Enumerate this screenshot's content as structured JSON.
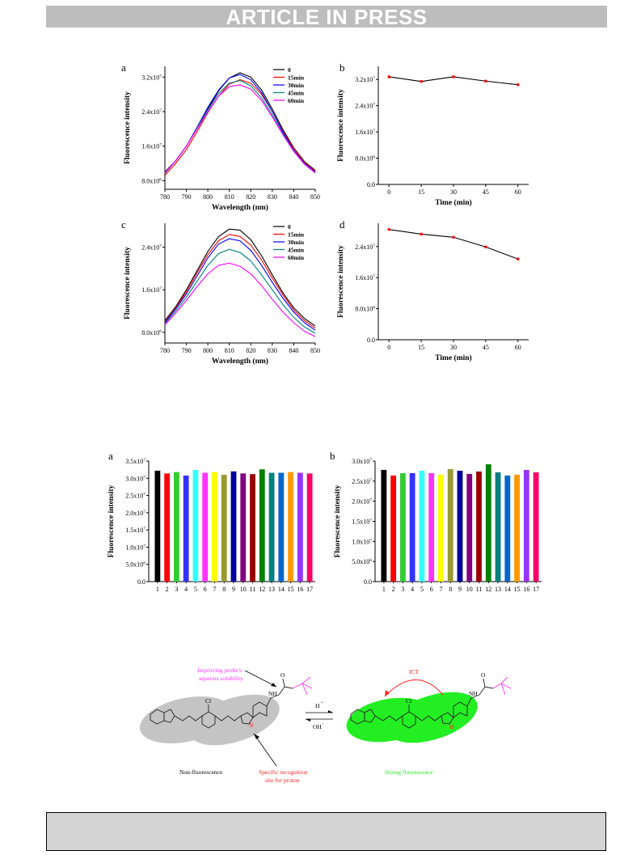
{
  "header": {
    "banner": "ARTICLE IN PRESS"
  },
  "chart_data": [
    {
      "id": "fig1a",
      "panel": "a",
      "type": "line",
      "xlabel": "Wavelength (nm)",
      "ylabel": "Fluorescence intensity",
      "xlim": [
        780,
        850
      ],
      "ylim": [
        6000000,
        34500000
      ],
      "xticks": [
        780,
        790,
        800,
        810,
        820,
        830,
        840,
        850
      ],
      "yticks": [
        8000000,
        16000000,
        24000000,
        32000000
      ],
      "ytick_labels": [
        "8.0x10^6",
        "1.6x10^7",
        "2.4x10^7",
        "3.2x10^7"
      ],
      "x": [
        780,
        785,
        790,
        795,
        800,
        805,
        810,
        815,
        820,
        825,
        830,
        835,
        840,
        845,
        850
      ],
      "series": [
        {
          "name": "0",
          "color": "#000000",
          "values": [
            10.0,
            12.6,
            16.0,
            20.2,
            24.6,
            28.8,
            31.8,
            33.0,
            32.0,
            29.0,
            24.6,
            19.8,
            15.6,
            12.4,
            10.4
          ]
        },
        {
          "name": "15min",
          "color": "#ff0000",
          "values": [
            9.2,
            12.0,
            15.2,
            19.4,
            23.8,
            27.6,
            30.4,
            31.4,
            30.6,
            28.0,
            24.0,
            19.4,
            15.4,
            12.2,
            10.2
          ]
        },
        {
          "name": "30min",
          "color": "#0000ff",
          "values": [
            9.8,
            12.6,
            16.0,
            20.4,
            25.0,
            29.0,
            31.8,
            32.6,
            31.4,
            28.4,
            24.0,
            19.2,
            15.0,
            12.0,
            10.0
          ]
        },
        {
          "name": "45min",
          "color": "#008080",
          "values": [
            9.6,
            12.6,
            16.0,
            20.2,
            24.4,
            28.2,
            30.6,
            31.2,
            30.0,
            27.2,
            23.2,
            18.8,
            14.8,
            11.8,
            9.8
          ]
        },
        {
          "name": "60min",
          "color": "#ff00ff",
          "values": [
            9.8,
            12.6,
            16.0,
            20.0,
            24.0,
            27.6,
            29.8,
            30.2,
            29.2,
            26.6,
            22.8,
            18.6,
            14.8,
            11.8,
            9.8
          ]
        }
      ]
    },
    {
      "id": "fig1b",
      "panel": "b",
      "type": "line",
      "xlabel": "Time (min)",
      "ylabel": "Fluorescence intensity",
      "xlim": [
        -5,
        65
      ],
      "ylim": [
        0,
        36000000
      ],
      "xticks": [
        0,
        15,
        30,
        45,
        60
      ],
      "yticks": [
        0,
        8000000,
        16000000,
        24000000,
        32000000
      ],
      "ytick_labels": [
        "0.0",
        "8.0x10^6",
        "1.6x10^7",
        "2.4x10^7",
        "3.2x10^7"
      ],
      "x": [
        0,
        15,
        30,
        45,
        60
      ],
      "series": [
        {
          "name": "",
          "color": "#000000",
          "marker_color": "#ff0000",
          "values": [
            32.8,
            31.4,
            32.8,
            31.5,
            30.4
          ]
        }
      ]
    },
    {
      "id": "fig1c",
      "panel": "c",
      "type": "line",
      "xlabel": "Wavelength (nm)",
      "ylabel": "Fluorescence intensity",
      "xlim": [
        780,
        850
      ],
      "ylim": [
        6000000,
        28500000
      ],
      "xticks": [
        780,
        790,
        800,
        810,
        820,
        830,
        840,
        850
      ],
      "yticks": [
        8000000,
        16000000,
        24000000
      ],
      "ytick_labels": [
        "8.0x10^6",
        "1.6x10^7",
        "2.4x10^7"
      ],
      "x": [
        780,
        785,
        790,
        795,
        800,
        805,
        810,
        815,
        820,
        825,
        830,
        835,
        840,
        845,
        850
      ],
      "series": [
        {
          "name": "0",
          "color": "#000000",
          "values": [
            10.2,
            12.8,
            16.0,
            19.6,
            23.2,
            26.0,
            27.4,
            27.2,
            25.4,
            22.4,
            18.8,
            15.4,
            12.6,
            10.6,
            9.2
          ]
        },
        {
          "name": "15min",
          "color": "#ff0000",
          "values": [
            10.0,
            12.6,
            15.6,
            19.2,
            22.6,
            25.2,
            26.4,
            26.0,
            24.4,
            21.6,
            18.2,
            15.0,
            12.2,
            10.2,
            8.8
          ]
        },
        {
          "name": "30min",
          "color": "#0000ff",
          "values": [
            9.8,
            12.4,
            15.2,
            18.6,
            22.0,
            24.6,
            25.6,
            25.2,
            23.4,
            20.6,
            17.4,
            14.4,
            11.8,
            9.8,
            8.4
          ]
        },
        {
          "name": "45min",
          "color": "#008080",
          "values": [
            9.6,
            12.0,
            14.6,
            17.6,
            20.6,
            22.8,
            23.6,
            23.0,
            21.4,
            18.8,
            16.0,
            13.2,
            10.8,
            9.0,
            7.8
          ]
        },
        {
          "name": "60min",
          "color": "#ff00ff",
          "values": [
            9.4,
            11.6,
            14.0,
            16.6,
            19.0,
            20.6,
            21.0,
            20.4,
            19.0,
            16.8,
            14.2,
            11.8,
            9.8,
            8.2,
            7.2
          ]
        }
      ]
    },
    {
      "id": "fig1d",
      "panel": "d",
      "type": "line",
      "xlabel": "Time (min)",
      "ylabel": "Fluorescence intensity",
      "xlim": [
        -5,
        65
      ],
      "ylim": [
        0,
        30000000
      ],
      "xticks": [
        0,
        15,
        30,
        45,
        60
      ],
      "yticks": [
        0,
        8000000,
        16000000,
        24000000
      ],
      "ytick_labels": [
        "0.0",
        "8.0x10^6",
        "1.6x10^7",
        "2.4x10^7"
      ],
      "x": [
        0,
        15,
        30,
        45,
        60
      ],
      "series": [
        {
          "name": "",
          "color": "#000000",
          "marker_color": "#ff0000",
          "values": [
            28.4,
            27.2,
            26.4,
            23.9,
            20.8
          ]
        }
      ]
    },
    {
      "id": "fig2a",
      "panel": "a",
      "type": "bar",
      "xlabel": "",
      "ylabel": "Fluorescence intensity",
      "ylim": [
        0,
        35000000
      ],
      "yticks": [
        0,
        5000000,
        10000000,
        15000000,
        20000000,
        25000000,
        30000000,
        35000000
      ],
      "ytick_labels": [
        "0.0",
        "5.0x10^6",
        "1.0x10^7",
        "1.5x10^7",
        "2.0x10^7",
        "2.5x10^7",
        "3.0x10^7",
        "3.5x10^7"
      ],
      "categories": [
        "1",
        "2",
        "3",
        "4",
        "5",
        "6",
        "7",
        "8",
        "9",
        "10",
        "11",
        "12",
        "13",
        "14",
        "15",
        "16",
        "17"
      ],
      "values": [
        32.2,
        31.4,
        31.8,
        30.8,
        32.4,
        31.6,
        31.8,
        31.0,
        32.0,
        31.4,
        31.2,
        32.6,
        31.6,
        31.6,
        31.8,
        31.6,
        31.4
      ],
      "colors": [
        "#000000",
        "#ff0000",
        "#33cc33",
        "#3333ff",
        "#33ffff",
        "#ff33ff",
        "#ffff00",
        "#999933",
        "#000099",
        "#800080",
        "#990000",
        "#008000",
        "#008080",
        "#0066cc",
        "#ff9900",
        "#9933ff",
        "#ff0066"
      ]
    },
    {
      "id": "fig2b",
      "panel": "b",
      "type": "bar",
      "xlabel": "",
      "ylabel": "Fluorescence intensity",
      "ylim": [
        0,
        30000000
      ],
      "yticks": [
        0,
        5000000,
        10000000,
        15000000,
        20000000,
        25000000,
        30000000
      ],
      "ytick_labels": [
        "0.0",
        "5.0x10^6",
        "1.0x10^7",
        "1.5x10^7",
        "2.0x10^7",
        "2.5x10^7",
        "3.0x10^7"
      ],
      "categories": [
        "1",
        "2",
        "3",
        "4",
        "5",
        "6",
        "7",
        "8",
        "9",
        "10",
        "11",
        "12",
        "13",
        "14",
        "15",
        "16",
        "17"
      ],
      "values": [
        27.8,
        26.4,
        27.0,
        27.0,
        27.6,
        27.0,
        26.6,
        28.0,
        27.6,
        26.8,
        27.4,
        29.2,
        27.2,
        26.4,
        26.6,
        27.8,
        27.2
      ],
      "colors": [
        "#000000",
        "#ff0000",
        "#33cc33",
        "#3333ff",
        "#33ffff",
        "#ff33ff",
        "#ffff00",
        "#999933",
        "#000099",
        "#800080",
        "#990000",
        "#008000",
        "#008080",
        "#0066cc",
        "#ff9900",
        "#9933ff",
        "#ff0066"
      ]
    }
  ],
  "scheme": {
    "solubility_label_1": "Improving probe's",
    "solubility_label_2": "aqueous solubility",
    "ict_label": "ICT",
    "acid_label": "H",
    "acid_sup": "+",
    "base_label": "OH",
    "base_sup": "-",
    "cl_left": "Cl",
    "cl_right": "Cl",
    "nh_left": "NH",
    "nh_right": "NH",
    "o_left": "O",
    "o_right": "O",
    "n_label": "N",
    "h_label": "H",
    "nonfluor_label": "Non-fluorescence",
    "recog_label_1": "Specific recognition",
    "recog_label_2": "site for proton",
    "strong_label": "Strong fluorescence",
    "colors": {
      "magenta": "#ff33ff",
      "red": "#ff2222",
      "green": "#22ee22",
      "gray": "#c4c4c4"
    }
  }
}
